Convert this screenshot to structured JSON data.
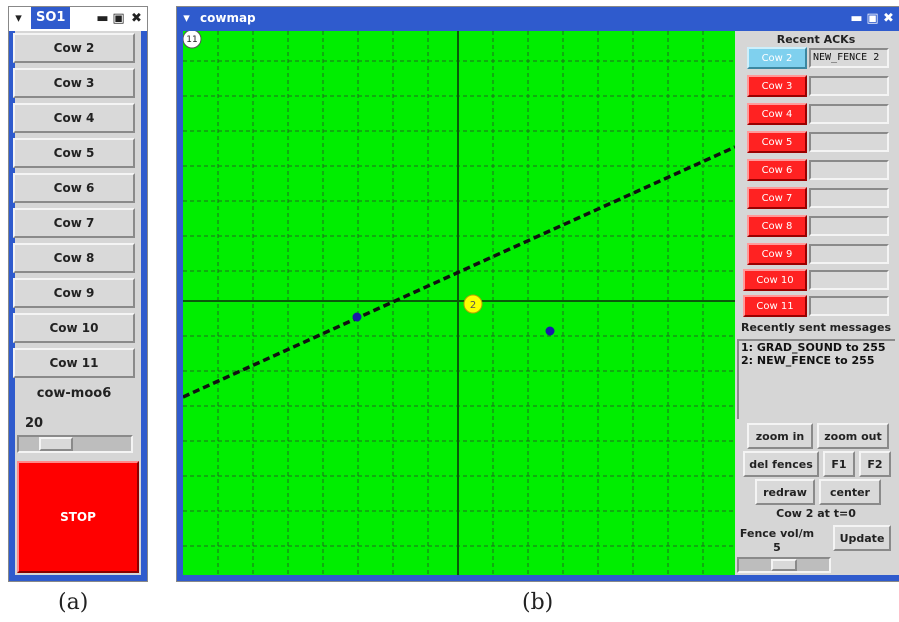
{
  "win_a": {
    "title": "SO1",
    "cow_buttons": [
      "Cow 2",
      "Cow 3",
      "Cow 4",
      "Cow 5",
      "Cow 6",
      "Cow 7",
      "Cow 8",
      "Cow 9",
      "Cow 10",
      "Cow 11"
    ],
    "device_name": "cow-moo6",
    "value": "20",
    "slider_level": 0.25,
    "stop_label": "STOP",
    "stop_color": "#ff0000"
  },
  "win_b": {
    "title": "cowmap",
    "map": {
      "background": "#00ee00",
      "corner_label": "11",
      "cow_marker_label": "2",
      "marker_color": "#ffff00",
      "dot_color": "#1a1aa8"
    },
    "recent_acks_title": "Recent ACKs",
    "acks": [
      {
        "cow": "Cow 2",
        "msg": "NEW_FENCE 2",
        "selected": true
      },
      {
        "cow": "Cow 3",
        "msg": ""
      },
      {
        "cow": "Cow 4",
        "msg": ""
      },
      {
        "cow": "Cow 5",
        "msg": ""
      },
      {
        "cow": "Cow 6",
        "msg": ""
      },
      {
        "cow": "Cow 7",
        "msg": ""
      },
      {
        "cow": "Cow 8",
        "msg": ""
      },
      {
        "cow": "Cow 9",
        "msg": ""
      },
      {
        "cow": "Cow 10",
        "msg": ""
      },
      {
        "cow": "Cow 11",
        "msg": ""
      }
    ],
    "recent_sent_title": "Recently sent messages",
    "sent_messages": [
      "1: GRAD_SOUND to 255",
      "2: NEW_FENCE to 255"
    ],
    "buttons": {
      "zoom_in": "zoom in",
      "zoom_out": "zoom out",
      "del_fences": "del fences",
      "f1": "F1",
      "f2": "F2",
      "redraw": "redraw",
      "center": "center",
      "update": "Update"
    },
    "status": "Cow 2 at t=0",
    "fence_vol_label": "Fence vol/m",
    "fence_vol_value": "5",
    "fence_slider_level": 0.5
  },
  "captions": {
    "a": "(a)",
    "b": "(b)"
  }
}
